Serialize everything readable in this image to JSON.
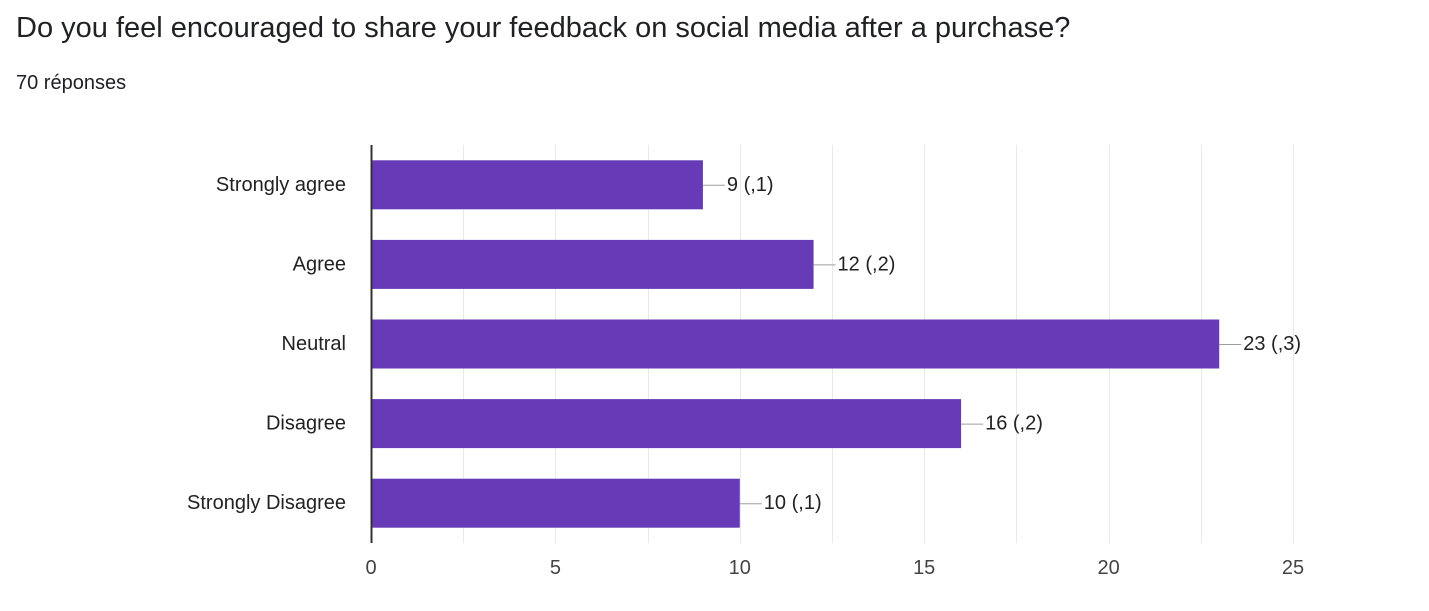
{
  "question": {
    "title": "Do you feel encouraged to share your feedback on social media after a purchase?",
    "response_count": "70 réponses"
  },
  "colors": {
    "bar": "#673ab7",
    "grid": "#e9e9e9",
    "axis": "#333333",
    "text": "#222222"
  },
  "chart_data": {
    "type": "bar",
    "orientation": "horizontal",
    "categories": [
      "Strongly agree",
      "Agree",
      "Neutral",
      "Disagree",
      "Strongly Disagree"
    ],
    "values": [
      9,
      12,
      23,
      16,
      10
    ],
    "data_labels": [
      "9 (,1)",
      "12 (,2)",
      "23 (,3)",
      "16 (,2)",
      "10 (,1)"
    ],
    "xlim": [
      0,
      25
    ],
    "xticks": [
      0,
      5,
      10,
      15,
      20,
      25
    ],
    "grid": true,
    "legend": "none"
  }
}
